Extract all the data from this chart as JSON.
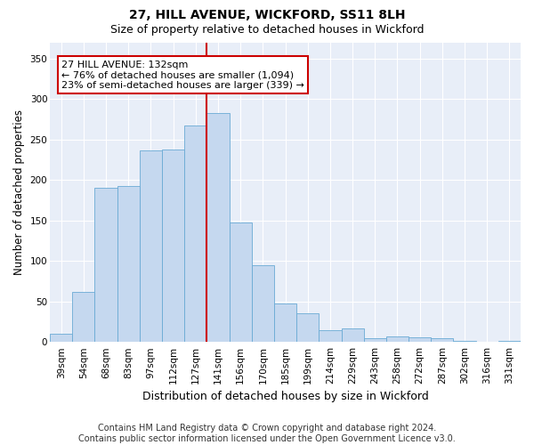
{
  "title": "27, HILL AVENUE, WICKFORD, SS11 8LH",
  "subtitle": "Size of property relative to detached houses in Wickford",
  "xlabel": "Distribution of detached houses by size in Wickford",
  "ylabel": "Number of detached properties",
  "categories": [
    "39sqm",
    "54sqm",
    "68sqm",
    "83sqm",
    "97sqm",
    "112sqm",
    "127sqm",
    "141sqm",
    "156sqm",
    "170sqm",
    "185sqm",
    "199sqm",
    "214sqm",
    "229sqm",
    "243sqm",
    "258sqm",
    "272sqm",
    "287sqm",
    "302sqm",
    "316sqm",
    "331sqm"
  ],
  "values": [
    10,
    62,
    190,
    192,
    237,
    238,
    267,
    283,
    148,
    95,
    48,
    35,
    15,
    17,
    5,
    7,
    6,
    5,
    1,
    0,
    1
  ],
  "bar_color": "#c5d8ef",
  "bar_edge_color": "#6aaad4",
  "red_line_index": 7,
  "red_line_color": "#cc0000",
  "annotation_text": "27 HILL AVENUE: 132sqm\n← 76% of detached houses are smaller (1,094)\n23% of semi-detached houses are larger (339) →",
  "annotation_box_facecolor": "#ffffff",
  "annotation_box_edgecolor": "#cc0000",
  "ylim": [
    0,
    370
  ],
  "yticks": [
    0,
    50,
    100,
    150,
    200,
    250,
    300,
    350
  ],
  "footer_line1": "Contains HM Land Registry data © Crown copyright and database right 2024.",
  "footer_line2": "Contains public sector information licensed under the Open Government Licence v3.0.",
  "title_fontsize": 10,
  "subtitle_fontsize": 9,
  "ylabel_fontsize": 8.5,
  "xlabel_fontsize": 9,
  "tick_fontsize": 7.5,
  "annot_fontsize": 8,
  "footer_fontsize": 7,
  "bg_color": "#ffffff",
  "plot_bg_color": "#e8eef8"
}
